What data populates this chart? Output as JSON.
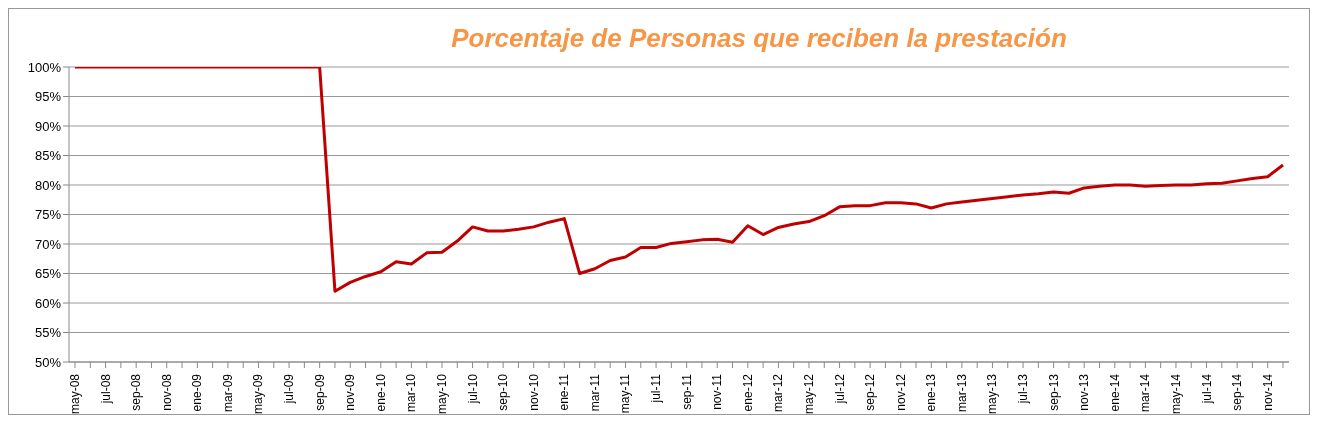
{
  "chart_data": {
    "type": "line",
    "title": "Porcentaje de Personas que reciben la prestación",
    "categories": [
      "may-08",
      null,
      "jul-08",
      null,
      "sep-08",
      null,
      "nov-08",
      null,
      "ene-09",
      null,
      "mar-09",
      null,
      "may-09",
      null,
      "jul-09",
      null,
      "sep-09",
      null,
      "nov-09",
      null,
      "ene-10",
      null,
      "mar-10",
      null,
      "may-10",
      null,
      "jul-10",
      null,
      "sep-10",
      null,
      "nov-10",
      null,
      "ene-11",
      null,
      "mar-11",
      null,
      "may-11",
      null,
      "jul-11",
      null,
      "sep-11",
      null,
      "nov-11",
      null,
      "ene-12",
      null,
      "mar-12",
      null,
      "may-12",
      null,
      "jul-12",
      null,
      "sep-12",
      null,
      "nov-12",
      null,
      "ene-13",
      null,
      "mar-13",
      null,
      "may-13",
      null,
      "jul-13",
      null,
      "sep-13",
      null,
      "nov-13",
      null,
      "ene-14",
      null,
      "mar-14",
      null,
      "may-14",
      null,
      "jul-14",
      null,
      "sep-14",
      null,
      "nov-14",
      null
    ],
    "series": [
      {
        "color": "#c00000",
        "values": [
          100,
          100,
          100,
          100,
          100,
          100,
          100,
          100,
          100,
          100,
          100,
          100,
          100,
          100,
          100,
          100,
          100,
          62,
          63.5,
          64.5,
          65.3,
          67,
          66.6,
          68.5,
          68.6,
          70.5,
          72.9,
          72.2,
          72.2,
          72.5,
          72.9,
          73.7,
          74.3,
          65,
          65.8,
          67.2,
          67.8,
          69.4,
          69.4,
          70.1,
          70.4,
          70.7,
          70.8,
          70.3,
          73.1,
          71.6,
          72.8,
          73.4,
          73.8,
          74.8,
          76.3,
          76.5,
          76.5,
          77,
          77,
          76.8,
          76.1,
          76.8,
          77.1,
          77.4,
          77.7,
          78,
          78.3,
          78.5,
          78.8,
          78.6,
          79.5,
          79.8,
          80,
          80,
          79.8,
          79.9,
          80,
          80,
          80.2,
          80.3,
          80.7,
          81.1,
          81.4,
          83.4
        ]
      }
    ],
    "ylim": [
      50,
      100
    ],
    "yticks": [
      {
        "value": 50,
        "label": "50%"
      },
      {
        "value": 55,
        "label": "55%"
      },
      {
        "value": 60,
        "label": "60%"
      },
      {
        "value": 65,
        "label": "65%"
      },
      {
        "value": 70,
        "label": "70%"
      },
      {
        "value": 75,
        "label": "75%"
      },
      {
        "value": 80,
        "label": "80%"
      },
      {
        "value": 85,
        "label": "85%"
      },
      {
        "value": 90,
        "label": "90%"
      },
      {
        "value": 95,
        "label": "95%"
      },
      {
        "value": 100,
        "label": "100%"
      }
    ],
    "grid": "y",
    "legend": false,
    "marker": "none",
    "line_style": "solid"
  }
}
